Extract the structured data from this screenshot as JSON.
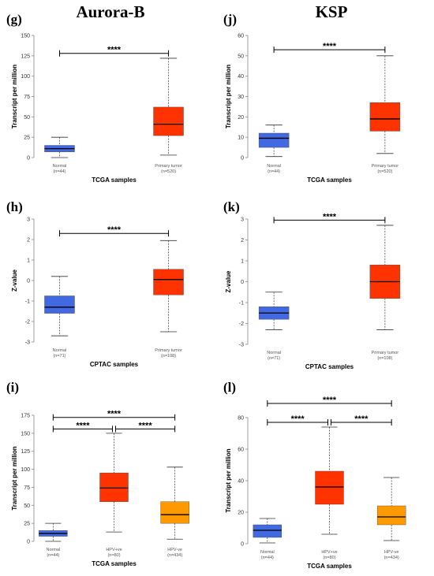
{
  "figure": {
    "title_left": "Aurora-B",
    "title_right": "KSP"
  },
  "colors": {
    "normal": "#4169e1",
    "tumor": "#ff3300",
    "hpv_neg": "#ff9900"
  },
  "chart_data": [
    {
      "panel": "(g)",
      "type": "box",
      "ylabel": "Transcript per million",
      "xlabel": "TCGA samples",
      "ylim": [
        0,
        150
      ],
      "yticks": [
        0,
        25,
        50,
        75,
        100,
        125,
        150
      ],
      "categories": [
        {
          "name": "Normal",
          "n": "(n=44)",
          "color": "#4169e1",
          "whisker_low": 0,
          "q1": 7,
          "median": 11,
          "q3": 15,
          "whisker_high": 25
        },
        {
          "name": "Primary tumor",
          "n": "(n=520)",
          "color": "#ff3300",
          "whisker_low": 3,
          "q1": 27,
          "median": 41,
          "q3": 62,
          "whisker_high": 122
        }
      ],
      "significance": [
        {
          "from": 0,
          "to": 1,
          "level": 128,
          "label": "****"
        }
      ]
    },
    {
      "panel": "(j)",
      "type": "box",
      "ylabel": "Transcript per million",
      "xlabel": "TCGA samples",
      "ylim": [
        0,
        60
      ],
      "yticks": [
        0,
        10,
        20,
        30,
        40,
        50,
        60
      ],
      "categories": [
        {
          "name": "Normal",
          "n": "(n=44)",
          "color": "#4169e1",
          "whisker_low": 0.5,
          "q1": 5,
          "median": 9.5,
          "q3": 12,
          "whisker_high": 16
        },
        {
          "name": "Primary tumor",
          "n": "(n=520)",
          "color": "#ff3300",
          "whisker_low": 2,
          "q1": 13,
          "median": 19,
          "q3": 27,
          "whisker_high": 50
        }
      ],
      "significance": [
        {
          "from": 0,
          "to": 1,
          "level": 53,
          "label": "****"
        }
      ]
    },
    {
      "panel": "(h)",
      "type": "box",
      "ylabel": "Z-value",
      "xlabel": "CPTAC samples",
      "ylim": [
        -3,
        3
      ],
      "yticks": [
        -3,
        -2,
        -1,
        0,
        1,
        2,
        3
      ],
      "categories": [
        {
          "name": "Normal",
          "n": "(n=71)",
          "color": "#4169e1",
          "whisker_low": -2.7,
          "q1": -1.6,
          "median": -1.3,
          "q3": -0.75,
          "whisker_high": 0.2
        },
        {
          "name": "Primary tumor",
          "n": "(n=108)",
          "color": "#ff3300",
          "whisker_low": -2.5,
          "q1": -0.7,
          "median": 0.05,
          "q3": 0.55,
          "whisker_high": 1.95
        }
      ],
      "significance": [
        {
          "from": 0,
          "to": 1,
          "level": 2.3,
          "label": "****"
        }
      ]
    },
    {
      "panel": "(k)",
      "type": "box",
      "ylabel": "Z-value",
      "xlabel": "CPTAC samples",
      "ylim": [
        -3,
        3
      ],
      "yticks": [
        -3,
        -2,
        -1,
        0,
        1,
        2,
        3
      ],
      "categories": [
        {
          "name": "Normal",
          "n": "(n=71)",
          "color": "#4169e1",
          "whisker_low": -2.3,
          "q1": -1.8,
          "median": -1.5,
          "q3": -1.2,
          "whisker_high": -0.5
        },
        {
          "name": "Primary tumor",
          "n": "(n=108)",
          "color": "#ff3300",
          "whisker_low": -2.3,
          "q1": -0.8,
          "median": 0.0,
          "q3": 0.8,
          "whisker_high": 2.7
        }
      ],
      "significance": [
        {
          "from": 0,
          "to": 1,
          "level": 2.95,
          "label": "****"
        }
      ]
    },
    {
      "panel": "(i)",
      "type": "box",
      "ylabel": "Transcript per million",
      "xlabel": "TCGA samples",
      "ylim": [
        0,
        175
      ],
      "yticks": [
        0,
        25,
        50,
        75,
        100,
        125,
        150,
        175
      ],
      "categories": [
        {
          "name": "Normal",
          "n": "(n=44)",
          "color": "#4169e1",
          "whisker_low": 0,
          "q1": 7,
          "median": 11,
          "q3": 15,
          "whisker_high": 25
        },
        {
          "name": "HPV+ve",
          "n": "(n=80)",
          "color": "#ff3300",
          "whisker_low": 13,
          "q1": 55,
          "median": 74,
          "q3": 95,
          "whisker_high": 150
        },
        {
          "name": "HPV-ve",
          "n": "(n=434)",
          "color": "#ff9900",
          "whisker_low": 3,
          "q1": 25,
          "median": 37,
          "q3": 55,
          "whisker_high": 103
        }
      ],
      "significance": [
        {
          "from": 0,
          "to": 1,
          "level": 156,
          "label": "****"
        },
        {
          "from": 1,
          "to": 2,
          "level": 156,
          "label": "****"
        },
        {
          "from": 0,
          "to": 2,
          "level": 172,
          "label": "****"
        }
      ]
    },
    {
      "panel": "(l)",
      "type": "box",
      "ylabel": "Transcript per million",
      "xlabel": "TCGA samples",
      "ylim": [
        0,
        80
      ],
      "yticks": [
        0,
        20,
        40,
        60,
        80
      ],
      "categories": [
        {
          "name": "Normal",
          "n": "(n=44)",
          "color": "#4169e1",
          "whisker_low": 0.5,
          "q1": 4,
          "median": 8.5,
          "q3": 12,
          "whisker_high": 16
        },
        {
          "name": "HPV+ve",
          "n": "(n=80)",
          "color": "#ff3300",
          "whisker_low": 6,
          "q1": 25,
          "median": 36,
          "q3": 46,
          "whisker_high": 74
        },
        {
          "name": "HPV-ve",
          "n": "(n=434)",
          "color": "#ff9900",
          "whisker_low": 2,
          "q1": 12,
          "median": 17,
          "q3": 24,
          "whisker_high": 42
        }
      ],
      "significance": [
        {
          "from": 0,
          "to": 1,
          "level": 77,
          "label": "****"
        },
        {
          "from": 1,
          "to": 2,
          "level": 77,
          "label": "****"
        },
        {
          "from": 0,
          "to": 2,
          "level": 89,
          "label": "****"
        }
      ]
    }
  ]
}
